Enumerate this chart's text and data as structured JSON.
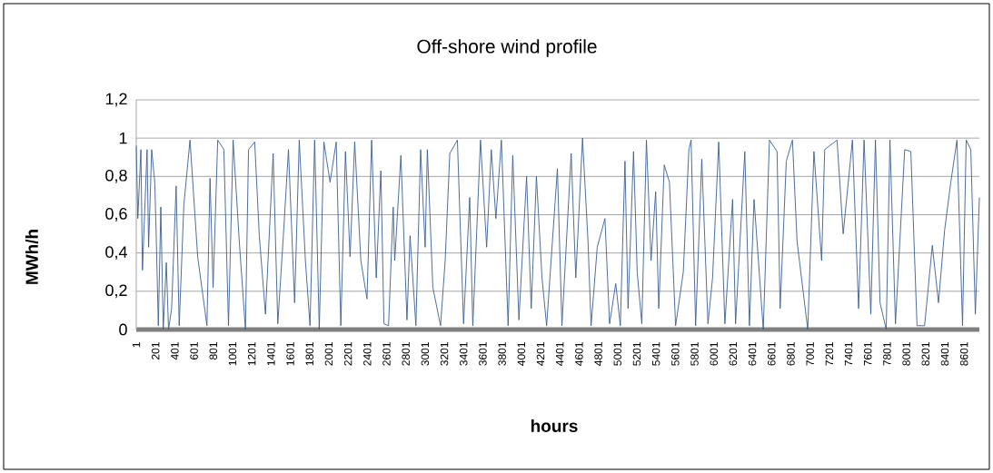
{
  "chart_data": {
    "type": "line",
    "title": "Off-shore wind profile",
    "xlabel": "hours",
    "ylabel": "MWh/h",
    "xlim": [
      1,
      8760
    ],
    "xticks": [
      1,
      201,
      401,
      601,
      801,
      1001,
      1201,
      1401,
      1601,
      1801,
      2001,
      2201,
      2401,
      2601,
      2801,
      3001,
      3201,
      3401,
      3601,
      3801,
      4001,
      4201,
      4401,
      4601,
      4801,
      5001,
      5201,
      5401,
      5601,
      5801,
      6001,
      6201,
      6401,
      6601,
      6801,
      7001,
      7201,
      7401,
      7601,
      7801,
      8001,
      8201,
      8401,
      8601
    ],
    "ylim": [
      0,
      1.2
    ],
    "yticks": [
      0,
      {
        "value": 0.2,
        "label": "0,2"
      },
      {
        "value": 0.4,
        "label": "0,4"
      },
      {
        "value": 0.6,
        "label": "0,6"
      },
      {
        "value": 0.8,
        "label": "0,8"
      },
      1,
      {
        "value": 1.2,
        "label": "1,2"
      }
    ],
    "grid": "y",
    "series": [
      {
        "color": "#3a5f94",
        "x": [
          1,
          17,
          49,
          65,
          113,
          129,
          161,
          193,
          209,
          230,
          256,
          281,
          313,
          336,
          368,
          415,
          447,
          495,
          559,
          639,
          735,
          767,
          799,
          847,
          911,
          959,
          1007,
          1071,
          1135,
          1167,
          1231,
          1279,
          1343,
          1423,
          1471,
          1534,
          1582,
          1646,
          1694,
          1758,
          1806,
          1854,
          1902,
          1950,
          2014,
          2078,
          2126,
          2174,
          2222,
          2270,
          2334,
          2398,
          2446,
          2494,
          2542,
          2574,
          2622,
          2670,
          2686,
          2750,
          2813,
          2845,
          2906,
          2955,
          3002,
          3025,
          3082,
          3162,
          3210,
          3258,
          3337,
          3401,
          3465,
          3497,
          3577,
          3641,
          3689,
          3737,
          3794,
          3864,
          3912,
          3976,
          4056,
          4104,
          4158,
          4216,
          4264,
          4376,
          4423,
          4519,
          4567,
          4637,
          4694,
          4726,
          4790,
          4870,
          4918,
          4982,
          5030,
          5078,
          5110,
          5167,
          5205,
          5253,
          5301,
          5349,
          5397,
          5429,
          5486,
          5540,
          5604,
          5684,
          5742,
          5765,
          5812,
          5876,
          5940,
          5988,
          6052,
          6116,
          6196,
          6227,
          6323,
          6371,
          6419,
          6515,
          6579,
          6658,
          6690,
          6754,
          6818,
          6866,
          6977,
          7041,
          7121,
          7153,
          7281,
          7345,
          7441,
          7505,
          7562,
          7632,
          7680,
          7728,
          7792,
          7831,
          7888,
          7984,
          8048,
          8112,
          8191,
          8271,
          8335,
          8399,
          8463,
          8527,
          8585,
          8623,
          8671,
          8718,
          8760
        ],
        "values": [
          0.96,
          0.58,
          0.94,
          0.31,
          0.94,
          0.43,
          0.94,
          0.77,
          0.47,
          0.02,
          0.64,
          0,
          0.35,
          0,
          0.11,
          0.75,
          0.02,
          0.65,
          0.99,
          0.38,
          0.02,
          0.79,
          0.22,
          0.99,
          0.94,
          0.02,
          0.99,
          0.46,
          0,
          0.94,
          0.98,
          0.49,
          0.08,
          0.92,
          0.03,
          0.53,
          0.94,
          0.14,
          0.99,
          0.36,
          0.02,
          0.99,
          0,
          0.98,
          0.77,
          0.98,
          0.02,
          0.93,
          0.38,
          0.98,
          0.36,
          0.16,
          0.99,
          0.27,
          0.83,
          0.03,
          0.02,
          0.64,
          0.36,
          0.91,
          0.05,
          0.49,
          0.02,
          0.94,
          0.43,
          0.94,
          0.22,
          0.02,
          0.36,
          0.92,
          0.99,
          0.03,
          0.69,
          0.02,
          0.99,
          0.43,
          0.94,
          0.58,
          0.99,
          0.02,
          0.91,
          0.05,
          0.8,
          0.11,
          0.8,
          0.27,
          0.02,
          0.84,
          0.02,
          0.92,
          0.27,
          1,
          0.46,
          0.02,
          0.43,
          0.58,
          0.03,
          0.24,
          0.02,
          0.88,
          0.11,
          0.93,
          0.3,
          0.03,
          0.99,
          0.36,
          0.72,
          0.11,
          0.86,
          0.77,
          0.02,
          0.3,
          0.94,
          0.99,
          0.02,
          0.89,
          0.03,
          0.27,
          0.98,
          0.03,
          0.68,
          0.03,
          0.93,
          0.02,
          0.68,
          0,
          0.99,
          0.93,
          0.11,
          0.88,
          0.99,
          0.46,
          0,
          0.93,
          0.36,
          0.94,
          0.99,
          0.5,
          0.99,
          0.11,
          0.99,
          0.08,
          0.99,
          0.14,
          0,
          0.99,
          0.03,
          0.94,
          0.93,
          0.02,
          0.02,
          0.44,
          0.14,
          0.52,
          0.77,
          0.99,
          0.02,
          0.99,
          0.94,
          0.08,
          0.69
        ]
      }
    ]
  }
}
